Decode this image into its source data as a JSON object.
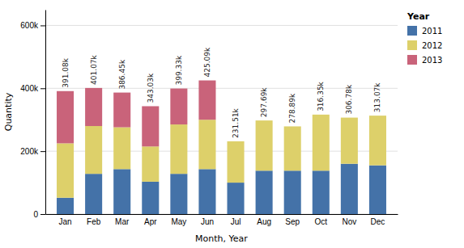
{
  "chart_data": {
    "type": "bar",
    "stacked": true,
    "categories": [
      "Jan",
      "Feb",
      "Mar",
      "Apr",
      "May",
      "Jun",
      "Jul",
      "Aug",
      "Sep",
      "Oct",
      "Nov",
      "Dec"
    ],
    "series": [
      {
        "name": "2011",
        "color": "#4472a8",
        "values": [
          52000,
          128000,
          143000,
          103000,
          128000,
          143000,
          100000,
          138000,
          138000,
          138000,
          160000,
          155000
        ]
      },
      {
        "name": "2012",
        "color": "#ddd06a",
        "values": [
          173000,
          152000,
          133000,
          112000,
          157000,
          157000,
          131510,
          159690,
          140890,
          178350,
          146780,
          158070
        ]
      },
      {
        "name": "2013",
        "color": "#c9637a",
        "values": [
          166080,
          121070,
          110450,
          128030,
          114330,
          125090,
          0,
          0,
          0,
          0,
          0,
          0
        ]
      }
    ],
    "totals": [
      391080,
      401070,
      386450,
      343030,
      399330,
      425090,
      231510,
      297690,
      278890,
      316350,
      306780,
      313070
    ],
    "total_labels": [
      "391.08k",
      "401.07k",
      "386.45k",
      "343.03k",
      "399.33k",
      "425.09k",
      "231.51k",
      "297.69k",
      "278.89k",
      "316.35k",
      "306.78k",
      "313.07k"
    ],
    "xlabel": "Month, Year",
    "ylabel": "Quantity",
    "ylim": [
      0,
      650000
    ],
    "yticks": [
      0,
      {
        "value": 200000,
        "label": "200k"
      },
      {
        "value": 400000,
        "label": "400k"
      },
      {
        "value": 600000,
        "label": "600k"
      }
    ],
    "grid": true,
    "legend": "right",
    "legend_title": "Year"
  }
}
